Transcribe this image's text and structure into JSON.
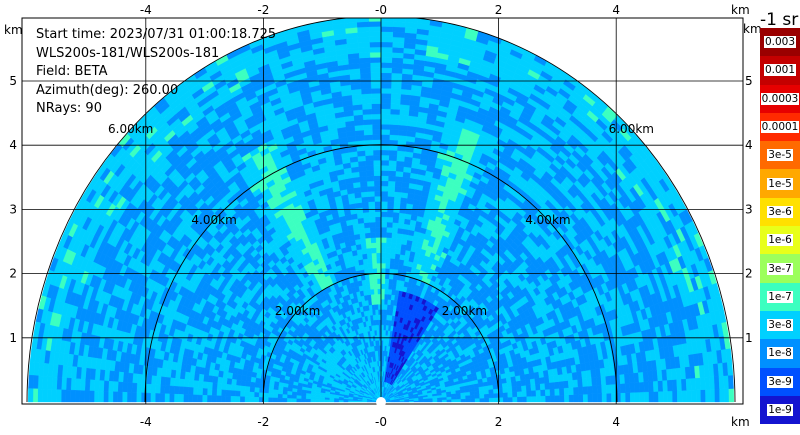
{
  "chart_data": {
    "type": "heatmap",
    "subtype": "radar-ppi-sector",
    "info": {
      "start_time": "Start time: 2023/07/31 01:00:18.725",
      "instrument": "WLS200s-181/WLS200s-181",
      "field": "Field: BETA",
      "azimuth": "Azimuth(deg): 260.00",
      "nrays": "NRays: 90"
    },
    "axis_unit": "km",
    "x_ticks": [
      "-4",
      "-2",
      "-0",
      "2",
      "4"
    ],
    "x_tick_values": [
      -4,
      -2,
      0,
      2,
      4
    ],
    "y_ticks": [
      "1",
      "2",
      "3",
      "4",
      "5"
    ],
    "y_tick_values": [
      1,
      2,
      3,
      4,
      5
    ],
    "xlim": [
      -6.05,
      6.05
    ],
    "ylim": [
      0,
      6.2
    ],
    "range_rings": [
      {
        "r": 2,
        "label": "2.00km"
      },
      {
        "r": 4,
        "label": "4.00km"
      },
      {
        "r": 6,
        "label": "6.00km"
      }
    ],
    "max_range_km": 6,
    "grid": true,
    "colorbar": {
      "unit_label": "-1 sr",
      "labels": [
        "0.003",
        "0.001",
        "0.0003",
        "0.0001",
        "3e-5",
        "1e-5",
        "3e-6",
        "1e-6",
        "3e-7",
        "1e-7",
        "3e-8",
        "1e-8",
        "3e-9",
        "1e-9"
      ],
      "colors": [
        "#9a0000",
        "#c40000",
        "#e60000",
        "#ff2a00",
        "#ff6a00",
        "#ffa800",
        "#ffe000",
        "#e8ff1a",
        "#9cff5c",
        "#3cffc0",
        "#00d0ff",
        "#0090ff",
        "#0050ff",
        "#1414d0"
      ]
    },
    "field_pattern": {
      "near_dark_blue": {
        "azimuth_deg": [
          55,
          80
        ],
        "range_km": [
          0.3,
          1.8
        ]
      },
      "cyan_streaks": [
        {
          "azimuth_deg": 118,
          "range_km": [
            2.0,
            4.5
          ]
        },
        {
          "azimuth_deg": 70,
          "range_km": [
            2.0,
            4.5
          ]
        },
        {
          "azimuth_deg": 92,
          "range_km": [
            1.5,
            2.6
          ]
        }
      ]
    }
  }
}
